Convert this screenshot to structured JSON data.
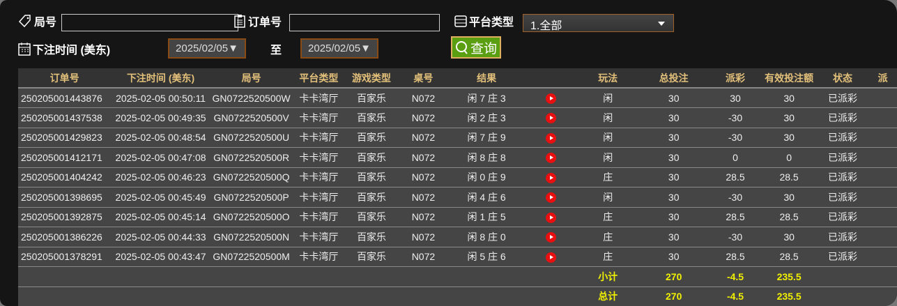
{
  "filters": {
    "round_label": "局号",
    "round_value": "",
    "order_label": "订单号",
    "order_value": "",
    "platform_label": "平台类型",
    "platform_value": "1.全部",
    "time_label": "下注时间 (美东)",
    "date_from": "2025/02/05▼",
    "to_label": "至",
    "date_to": "2025/02/05▼",
    "query_label": "查询"
  },
  "table": {
    "headers": [
      "订单号",
      "下注时间 (美东)",
      "局号",
      "平台类型",
      "游戏类型",
      "桌号",
      "结果",
      "",
      "玩法",
      "总投注",
      "派彩",
      "有效投注额",
      "状态",
      "派"
    ],
    "rows": [
      {
        "order": "250205001443876",
        "time": "2025-02-05 00:50:11",
        "round": "GN0722520500W",
        "platform": "卡卡湾厅",
        "game": "百家乐",
        "table": "N072",
        "result": "闲 7 庄 3",
        "play": "闲",
        "bet": "30",
        "payout": "30",
        "valid": "30",
        "status": "已派彩"
      },
      {
        "order": "250205001437538",
        "time": "2025-02-05 00:49:35",
        "round": "GN0722520500V",
        "platform": "卡卡湾厅",
        "game": "百家乐",
        "table": "N072",
        "result": "闲 2 庄 3",
        "play": "闲",
        "bet": "30",
        "payout": "-30",
        "valid": "30",
        "status": "已派彩"
      },
      {
        "order": "250205001429823",
        "time": "2025-02-05 00:48:54",
        "round": "GN0722520500U",
        "platform": "卡卡湾厅",
        "game": "百家乐",
        "table": "N072",
        "result": "闲 7 庄 9",
        "play": "闲",
        "bet": "30",
        "payout": "-30",
        "valid": "30",
        "status": "已派彩"
      },
      {
        "order": "250205001412171",
        "time": "2025-02-05 00:47:08",
        "round": "GN0722520500R",
        "platform": "卡卡湾厅",
        "game": "百家乐",
        "table": "N072",
        "result": "闲 8 庄 8",
        "play": "闲",
        "bet": "30",
        "payout": "0",
        "valid": "0",
        "status": "已派彩"
      },
      {
        "order": "250205001404242",
        "time": "2025-02-05 00:46:23",
        "round": "GN0722520500Q",
        "platform": "卡卡湾厅",
        "game": "百家乐",
        "table": "N072",
        "result": "闲 0 庄 9",
        "play": "庄",
        "bet": "30",
        "payout": "28.5",
        "valid": "28.5",
        "status": "已派彩"
      },
      {
        "order": "250205001398695",
        "time": "2025-02-05 00:45:49",
        "round": "GN0722520500P",
        "platform": "卡卡湾厅",
        "game": "百家乐",
        "table": "N072",
        "result": "闲 4 庄 6",
        "play": "闲",
        "bet": "30",
        "payout": "-30",
        "valid": "30",
        "status": "已派彩"
      },
      {
        "order": "250205001392875",
        "time": "2025-02-05 00:45:14",
        "round": "GN0722520500O",
        "platform": "卡卡湾厅",
        "game": "百家乐",
        "table": "N072",
        "result": "闲 1 庄 5",
        "play": "庄",
        "bet": "30",
        "payout": "28.5",
        "valid": "28.5",
        "status": "已派彩"
      },
      {
        "order": "250205001386226",
        "time": "2025-02-05 00:44:33",
        "round": "GN0722520500N",
        "platform": "卡卡湾厅",
        "game": "百家乐",
        "table": "N072",
        "result": "闲 8 庄 0",
        "play": "庄",
        "bet": "30",
        "payout": "-30",
        "valid": "30",
        "status": "已派彩"
      },
      {
        "order": "250205001378291",
        "time": "2025-02-05 00:43:47",
        "round": "GN0722520500M",
        "platform": "卡卡湾厅",
        "game": "百家乐",
        "table": "N072",
        "result": "闲 5 庄 6",
        "play": "庄",
        "bet": "30",
        "payout": "28.5",
        "valid": "28.5",
        "status": "已派彩"
      }
    ],
    "subtotal": {
      "label": "小计",
      "bet": "270",
      "payout": "-4.5",
      "valid": "235.5"
    },
    "total": {
      "label": "总计",
      "bet": "270",
      "payout": "-4.5",
      "valid": "235.5"
    }
  },
  "colors": {
    "header_text": "#e3c07a",
    "payout_positive": "#d0103a",
    "payout_negative": "#66cc00",
    "status": "#22dd22",
    "summary": "#f0f000",
    "query_button": "#5a9e12"
  }
}
